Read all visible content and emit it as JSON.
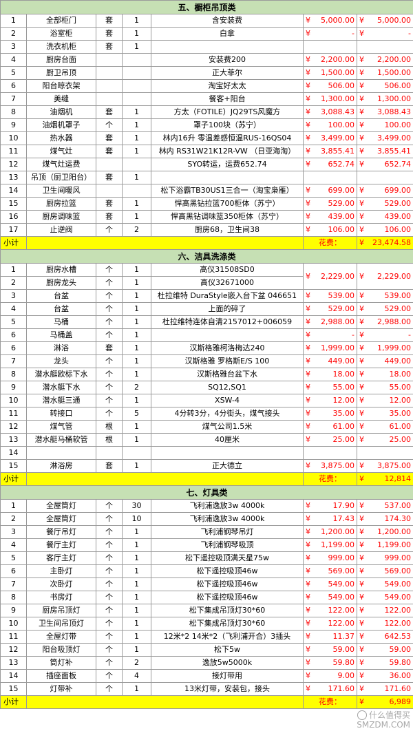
{
  "units": [
    "套",
    "个",
    "根"
  ],
  "sections": [
    {
      "title": "五、橱柜吊顶类",
      "subtotal_label": "小计",
      "fee_label": "花费：",
      "total": "23,474.58",
      "rows": [
        {
          "no": "1",
          "name": "全部柜门",
          "unit": "套",
          "qty": "1",
          "desc": "含安装费",
          "price": "5,000.00",
          "amount": "5,000.00"
        },
        {
          "no": "2",
          "name": "浴室柜",
          "unit": "套",
          "qty": "1",
          "desc": "白拿",
          "price": "-",
          "amount": "-"
        },
        {
          "no": "3",
          "name": "洗衣机柜",
          "unit": "套",
          "qty": "1",
          "desc": "",
          "price": "",
          "amount": ""
        },
        {
          "no": "4",
          "name": "厨房台面",
          "unit": "",
          "qty": "",
          "desc": "安装费200",
          "price": "2,200.00",
          "amount": "2,200.00"
        },
        {
          "no": "5",
          "name": "厨卫吊顶",
          "unit": "",
          "qty": "",
          "desc": "正大菲尔",
          "price": "1,500.00",
          "amount": "1,500.00"
        },
        {
          "no": "6",
          "name": "阳台晾衣架",
          "unit": "",
          "qty": "",
          "desc": "淘宝好太太",
          "price": "506.00",
          "amount": "506.00"
        },
        {
          "no": "7",
          "name": "美缝",
          "unit": "",
          "qty": "",
          "desc": "餐客+阳台",
          "price": "1,300.00",
          "amount": "1,300.00"
        },
        {
          "no": "8",
          "name": "油烟机",
          "unit": "套",
          "qty": "1",
          "desc": "方太（FOTILE）JQ29TS风魔方",
          "price": "3,088.43",
          "amount": "3,088.43"
        },
        {
          "no": "9",
          "name": "油烟机罩子",
          "unit": "个",
          "qty": "1",
          "desc": "罩子100块（苏宁）",
          "price": "100.00",
          "amount": "100.00"
        },
        {
          "no": "10",
          "name": "热水器",
          "unit": "套",
          "qty": "1",
          "desc": "林内16升 零温差感恒温RUS-16QS04",
          "price": "3,499.00",
          "amount": "3,499.00"
        },
        {
          "no": "11",
          "name": "煤气灶",
          "unit": "套",
          "qty": "1",
          "desc": "林内 RS31W21K12R-VW （日亚海淘）",
          "price": "3,855.41",
          "amount": "3,855.41"
        },
        {
          "no": "12",
          "name": "煤气灶运费",
          "unit": "",
          "qty": "",
          "desc": "SYO转运，运费652.74",
          "price": "652.74",
          "amount": "652.74"
        },
        {
          "no": "13",
          "name": "吊顶（厨卫阳台）",
          "unit": "套",
          "qty": "1",
          "desc": "",
          "price": "",
          "amount": ""
        },
        {
          "no": "14",
          "name": "卫生间暖风",
          "unit": "",
          "qty": "",
          "desc": "松下浴霸TB30US1三合一（淘宝枭雁）",
          "price": "699.00",
          "amount": "699.00"
        },
        {
          "no": "15",
          "name": "厨房拉篮",
          "unit": "套",
          "qty": "1",
          "desc": "悍高黑钻拉篮700柜体（苏宁）",
          "price": "529.00",
          "amount": "529.00"
        },
        {
          "no": "16",
          "name": "厨房调味篮",
          "unit": "套",
          "qty": "1",
          "desc": "悍高黑钻调味篮350柜体（苏宁）",
          "price": "439.00",
          "amount": "439.00"
        },
        {
          "no": "17",
          "name": "止逆阀",
          "unit": "个",
          "qty": "2",
          "desc": "厨房68，卫生间38",
          "price": "106.00",
          "amount": "106.00"
        }
      ]
    },
    {
      "title": "六、洁具洗涤类",
      "subtotal_label": "小计",
      "fee_label": "花费：",
      "total": "12,814",
      "rows": [
        {
          "no": "1",
          "name": "厨房水槽",
          "unit": "个",
          "qty": "1",
          "desc": "高仪31508SD0",
          "price": "",
          "amount": ""
        },
        {
          "no": "2",
          "name": "厨房龙头",
          "unit": "个",
          "qty": "1",
          "desc": "高仪32671000",
          "price": "",
          "amount": ""
        },
        {
          "no": "3",
          "name": "台盆",
          "unit": "个",
          "qty": "1",
          "desc": "杜拉维特 DuraStyle嵌入台下盆 046651",
          "price": "539.00",
          "amount": "539.00"
        },
        {
          "no": "4",
          "name": "台盆",
          "unit": "个",
          "qty": "1",
          "desc": "上面的碎了",
          "price": "529.00",
          "amount": "529.00"
        },
        {
          "no": "5",
          "name": "马桶",
          "unit": "个",
          "qty": "1",
          "desc": "杜拉维特连体自清2157012+006059",
          "price": "2,988.00",
          "amount": "2,988.00"
        },
        {
          "no": "6",
          "name": "马桶盖",
          "unit": "个",
          "qty": "1",
          "desc": "",
          "price": "-",
          "amount": "-"
        },
        {
          "no": "6",
          "name": "淋浴",
          "unit": "套",
          "qty": "1",
          "desc": "汉斯格雅柯洛梅达240",
          "price": "1,999.00",
          "amount": "1,999.00"
        },
        {
          "no": "7",
          "name": "龙头",
          "unit": "个",
          "qty": "1",
          "desc": "汉斯格雅 罗格斯E/S 100",
          "price": "449.00",
          "amount": "449.00"
        },
        {
          "no": "8",
          "name": "潜水艇欧标下水",
          "unit": "个",
          "qty": "1",
          "desc": "汉斯格雅台盆下水",
          "price": "18.00",
          "amount": "18.00"
        },
        {
          "no": "9",
          "name": "潜水艇下水",
          "unit": "个",
          "qty": "2",
          "desc": "SQ12,SQ1",
          "price": "55.00",
          "amount": "55.00"
        },
        {
          "no": "10",
          "name": "潜水艇三通",
          "unit": "个",
          "qty": "1",
          "desc": "XSW-4",
          "price": "12.00",
          "amount": "12.00"
        },
        {
          "no": "11",
          "name": "转接口",
          "unit": "个",
          "qty": "5",
          "desc": "4分转3分，4分街头，煤气接头",
          "price": "35.00",
          "amount": "35.00"
        },
        {
          "no": "12",
          "name": "煤气管",
          "unit": "根",
          "qty": "1",
          "desc": "煤气公司1.5米",
          "price": "61.00",
          "amount": "61.00"
        },
        {
          "no": "13",
          "name": "潜水艇马桶软管",
          "unit": "根",
          "qty": "1",
          "desc": "40厘米",
          "price": "25.00",
          "amount": "25.00"
        },
        {
          "no": "14",
          "name": "",
          "unit": "",
          "qty": "",
          "desc": "",
          "price": "",
          "amount": ""
        },
        {
          "no": "15",
          "name": "淋浴房",
          "unit": "套",
          "qty": "1",
          "desc": "正大德立",
          "price": "3,875.00",
          "amount": "3,875.00"
        }
      ],
      "merged": {
        "price": "2,229.00",
        "amount": "2,229.00"
      }
    },
    {
      "title": "七、灯具类",
      "subtotal_label": "小计",
      "fee_label": "花费：",
      "total": "6,989",
      "rows": [
        {
          "no": "1",
          "name": "全屋筒灯",
          "unit": "个",
          "qty": "30",
          "desc": "飞利浦逸放3w 4000k",
          "price": "17.90",
          "amount": "537.00"
        },
        {
          "no": "2",
          "name": "全屋筒灯",
          "unit": "个",
          "qty": "10",
          "desc": "飞利浦逸放3w 4000k",
          "price": "17.43",
          "amount": "174.30"
        },
        {
          "no": "3",
          "name": "餐厅吊灯",
          "unit": "个",
          "qty": "1",
          "desc": "飞利浦钢琴吊灯",
          "price": "1,200.00",
          "amount": "1,200.00"
        },
        {
          "no": "4",
          "name": "餐厅主灯",
          "unit": "个",
          "qty": "1",
          "desc": "飞利浦钢琴吸顶",
          "price": "1,199.00",
          "amount": "1,199.00"
        },
        {
          "no": "5",
          "name": "客厅主灯",
          "unit": "个",
          "qty": "1",
          "desc": "松下遥控吸顶满天星75w",
          "price": "999.00",
          "amount": "999.00"
        },
        {
          "no": "6",
          "name": "主卧灯",
          "unit": "个",
          "qty": "1",
          "desc": "松下遥控吸顶46w",
          "price": "569.00",
          "amount": "569.00"
        },
        {
          "no": "7",
          "name": "次卧灯",
          "unit": "个",
          "qty": "1",
          "desc": "松下遥控吸顶46w",
          "price": "549.00",
          "amount": "549.00"
        },
        {
          "no": "8",
          "name": "书房灯",
          "unit": "个",
          "qty": "1",
          "desc": "松下遥控吸顶46w",
          "price": "549.00",
          "amount": "549.00"
        },
        {
          "no": "9",
          "name": "厨房吊顶灯",
          "unit": "个",
          "qty": "1",
          "desc": "松下集成吊顶灯30*60",
          "price": "122.00",
          "amount": "122.00"
        },
        {
          "no": "10",
          "name": "卫生间吊顶灯",
          "unit": "个",
          "qty": "1",
          "desc": "松下集成吊顶灯30*60",
          "price": "122.00",
          "amount": "122.00"
        },
        {
          "no": "11",
          "name": "全屋灯带",
          "unit": "个",
          "qty": "1",
          "desc": "12米*2 14米*2（飞利浦开合）3插头",
          "price": "11.37",
          "amount": "642.53"
        },
        {
          "no": "12",
          "name": "阳台吸顶灯",
          "unit": "个",
          "qty": "1",
          "desc": "松下5w",
          "price": "59.00",
          "amount": "59.00"
        },
        {
          "no": "13",
          "name": "筒灯补",
          "unit": "个",
          "qty": "2",
          "desc": "逸放5w5000k",
          "price": "59.80",
          "amount": "59.80"
        },
        {
          "no": "14",
          "name": "插座面板",
          "unit": "个",
          "qty": "4",
          "desc": "接灯带用",
          "price": "9.00",
          "amount": "36.00"
        },
        {
          "no": "15",
          "name": "灯带补",
          "unit": "个",
          "qty": "1",
          "desc": "13米灯带，安装包，接头",
          "price": "171.60",
          "amount": "171.60"
        }
      ]
    }
  ],
  "currency": "¥",
  "watermark": {
    "line1": "什么值得买",
    "line2": "SMZDM.COM"
  }
}
